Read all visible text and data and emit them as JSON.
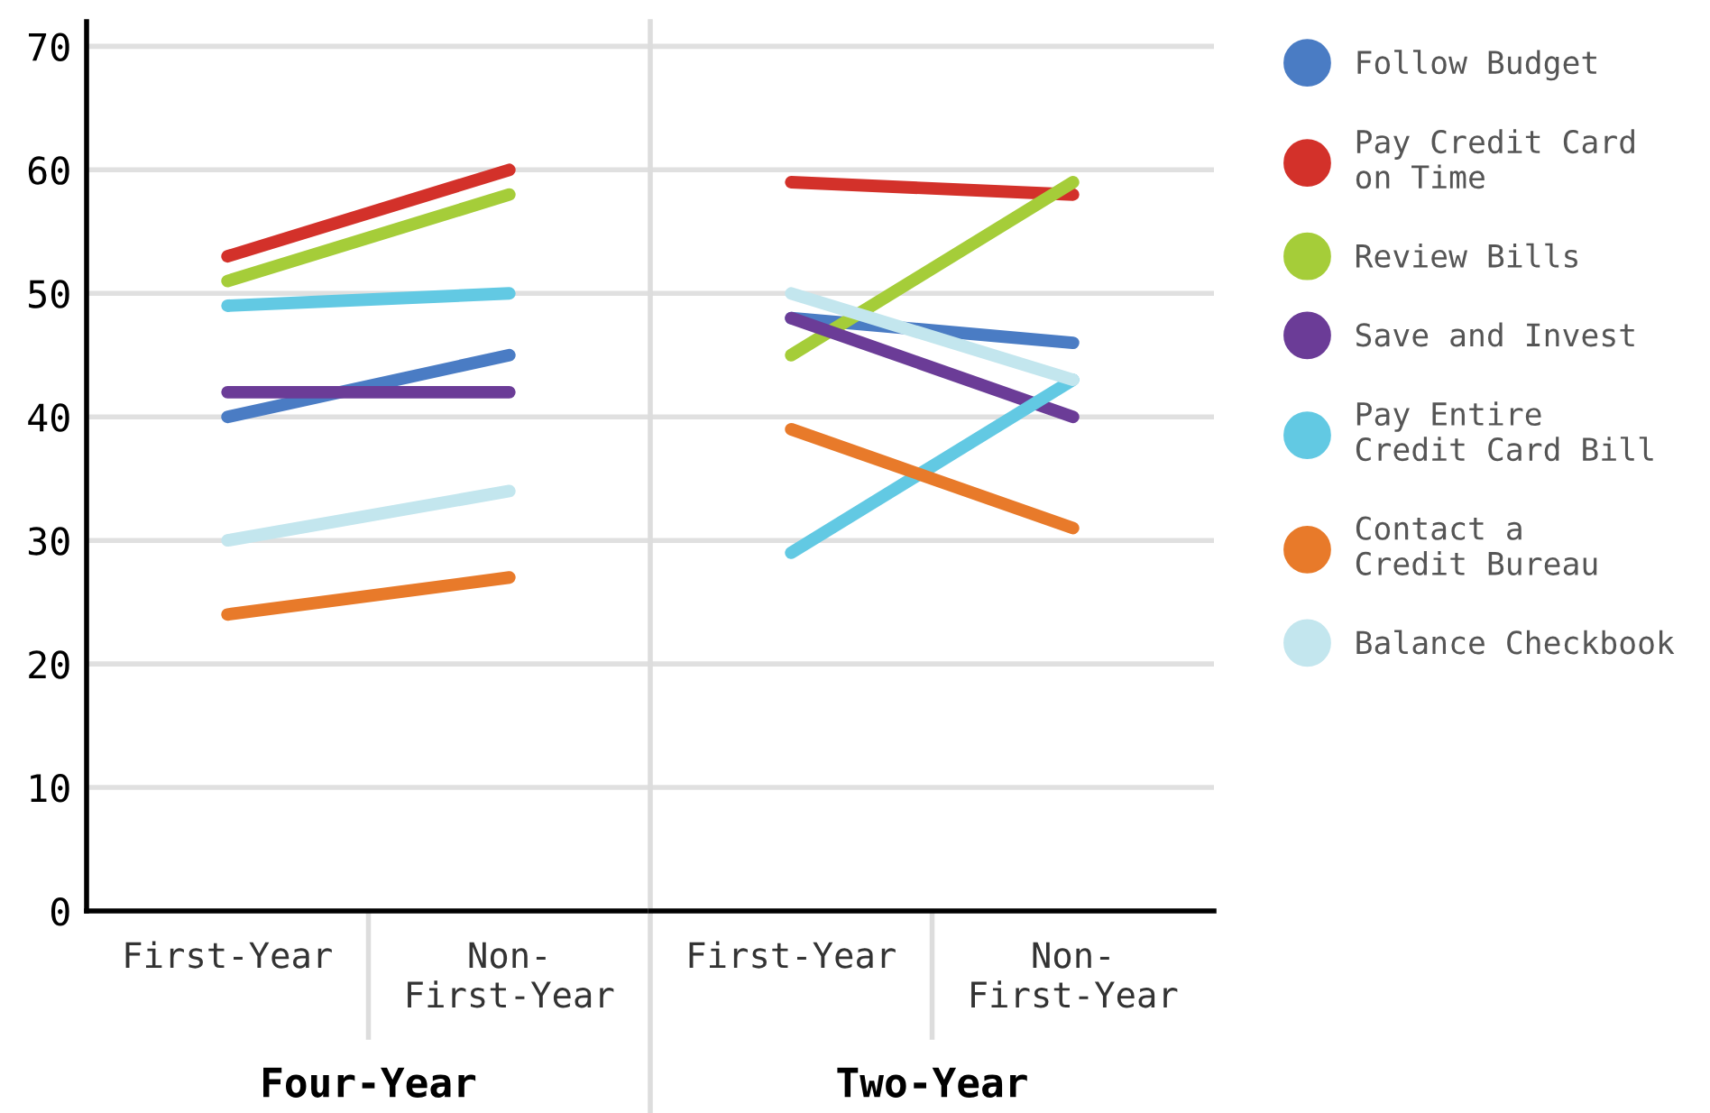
{
  "chart_data": [
    {
      "type": "line",
      "xlabel": "Four-Year",
      "categories": [
        "First-Year",
        "Non-\nFirst-Year"
      ],
      "series": [
        {
          "color": "#4a7cc4",
          "values": [
            40,
            45
          ]
        },
        {
          "color": "#d3312a",
          "values": [
            53,
            60
          ]
        },
        {
          "color": "#a5cd39",
          "values": [
            51,
            58
          ]
        },
        {
          "color": "#6b3c97",
          "values": [
            42,
            42
          ]
        },
        {
          "color": "#62c9e3",
          "values": [
            49,
            50
          ]
        },
        {
          "color": "#e87a2a",
          "values": [
            24,
            27
          ]
        },
        {
          "color": "#c3e6ee",
          "values": [
            30,
            34
          ]
        }
      ],
      "ylim": [
        0,
        72
      ],
      "yticks": [
        0,
        10,
        20,
        30,
        40,
        50,
        60,
        70
      ],
      "grid": "y",
      "marker": "none",
      "line_style": "solid"
    },
    {
      "type": "line",
      "xlabel": "Two-Year",
      "categories": [
        "First-Year",
        "Non-\nFirst-Year"
      ],
      "series": [
        {
          "name": "Follow Budget",
          "color": "#4a7cc4",
          "values": [
            48,
            46
          ]
        },
        {
          "name": "Pay Credit Card\non Time",
          "color": "#d3312a",
          "values": [
            59,
            58
          ]
        },
        {
          "name": "Review Bills",
          "color": "#a5cd39",
          "values": [
            45,
            59
          ]
        },
        {
          "name": "Save and Invest",
          "color": "#6b3c97",
          "values": [
            48,
            40
          ]
        },
        {
          "name": "Pay Entire\nCredit Card Bill",
          "color": "#62c9e3",
          "values": [
            29,
            43
          ]
        },
        {
          "name": "Contact a\nCredit Bureau",
          "color": "#e87a2a",
          "values": [
            39,
            31
          ]
        },
        {
          "name": "Balance Checkbook",
          "color": "#c3e6ee",
          "values": [
            50,
            43
          ]
        }
      ],
      "ylim": [
        0,
        72
      ],
      "yticks": [
        0,
        10,
        20,
        30,
        40,
        50,
        60,
        70
      ],
      "tick_labels": "x",
      "grid": "y",
      "legend": "right",
      "marker": "none",
      "line_style": "solid"
    }
  ]
}
